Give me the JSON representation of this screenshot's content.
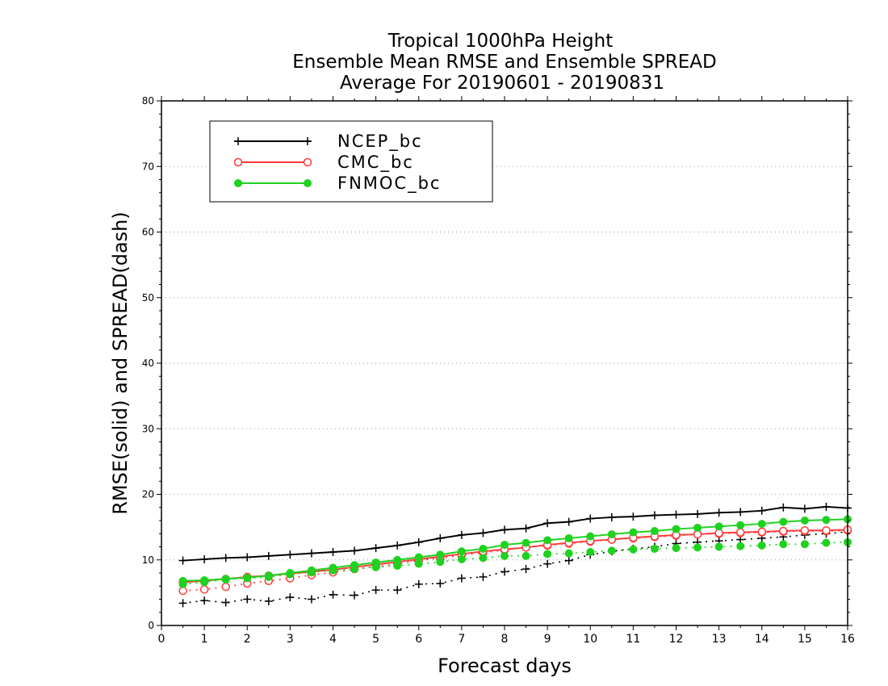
{
  "chart_data": {
    "type": "line",
    "title_lines": [
      "Tropical 1000hPa Height",
      "Ensemble Mean RMSE and Ensemble SPREAD",
      "Average For 20190601 - 20190831"
    ],
    "xlabel": "Forecast days",
    "ylabel": "RMSE(solid) and SPREAD(dash)",
    "xlim": [
      0,
      16
    ],
    "ylim": [
      0,
      80
    ],
    "x_ticks": [
      "0",
      "1",
      "2",
      "3",
      "4",
      "5",
      "6",
      "7",
      "8",
      "9",
      "10",
      "11",
      "12",
      "13",
      "14",
      "15",
      "16"
    ],
    "y_ticks": [
      "0",
      "10",
      "20",
      "30",
      "40",
      "50",
      "60",
      "70",
      "80"
    ],
    "grid": "horizontal dotted",
    "legend_position": "top-left",
    "x": [
      0.5,
      1,
      1.5,
      2,
      2.5,
      3,
      3.5,
      4,
      4.5,
      5,
      5.5,
      6,
      6.5,
      7,
      7.5,
      8,
      8.5,
      9,
      9.5,
      10,
      10.5,
      11,
      11.5,
      12,
      12.5,
      13,
      13.5,
      14,
      14.5,
      15,
      15.5,
      16
    ],
    "series": [
      {
        "name": "NCEP_bc",
        "color": "#000000",
        "marker": "plus",
        "rmse": [
          9.9,
          10.1,
          10.3,
          10.4,
          10.6,
          10.8,
          11.0,
          11.2,
          11.4,
          11.8,
          12.2,
          12.7,
          13.3,
          13.8,
          14.1,
          14.6,
          14.8,
          15.6,
          15.8,
          16.3,
          16.5,
          16.6,
          16.8,
          16.9,
          17.0,
          17.2,
          17.3,
          17.5,
          18.0,
          17.8,
          18.1,
          17.9
        ],
        "spread": [
          3.4,
          3.8,
          3.5,
          4.0,
          3.7,
          4.3,
          4.0,
          4.7,
          4.6,
          5.4,
          5.4,
          6.3,
          6.4,
          7.2,
          7.4,
          8.2,
          8.6,
          9.4,
          9.9,
          10.8,
          11.3,
          11.7,
          12.0,
          12.5,
          12.7,
          12.9,
          13.1,
          13.3,
          13.5,
          13.8,
          14.0,
          14.3
        ]
      },
      {
        "name": "CMC_bc",
        "color": "#ff3b3b",
        "marker": "open-circle",
        "rmse": [
          6.6,
          6.8,
          7.1,
          7.4,
          7.6,
          7.9,
          8.2,
          8.5,
          8.9,
          9.3,
          9.7,
          10.1,
          10.5,
          10.9,
          11.3,
          11.6,
          11.9,
          12.3,
          12.6,
          12.9,
          13.1,
          13.4,
          13.6,
          13.8,
          13.9,
          14.1,
          14.2,
          14.3,
          14.4,
          14.5,
          14.5,
          14.6
        ],
        "spread": [
          5.3,
          5.5,
          5.9,
          6.4,
          6.8,
          7.2,
          7.7,
          8.1,
          8.6,
          9.0,
          9.4,
          9.9,
          10.3,
          10.7,
          11.1,
          11.5,
          11.9,
          12.2,
          12.5,
          12.8,
          13.1,
          13.3,
          13.5,
          13.7,
          13.9,
          14.0,
          14.1,
          14.2,
          14.3,
          14.4,
          14.4,
          14.5
        ]
      },
      {
        "name": "FNMOC_bc",
        "color": "#1fd21f",
        "marker": "filled-circle",
        "rmse": [
          6.8,
          6.9,
          7.1,
          7.3,
          7.6,
          8.0,
          8.4,
          8.8,
          9.2,
          9.6,
          10.0,
          10.4,
          10.8,
          11.3,
          11.7,
          12.3,
          12.6,
          13.0,
          13.3,
          13.6,
          13.9,
          14.2,
          14.4,
          14.7,
          14.9,
          15.1,
          15.3,
          15.5,
          15.8,
          16.0,
          16.1,
          16.2
        ],
        "spread": [
          6.3,
          6.6,
          7.0,
          7.2,
          7.4,
          7.8,
          8.1,
          8.4,
          8.6,
          8.9,
          9.1,
          9.4,
          9.7,
          10.1,
          10.3,
          10.6,
          10.6,
          10.9,
          11.0,
          11.2,
          11.4,
          11.6,
          11.7,
          11.8,
          11.9,
          12.0,
          12.1,
          12.2,
          12.4,
          12.4,
          12.6,
          12.7
        ]
      }
    ]
  }
}
